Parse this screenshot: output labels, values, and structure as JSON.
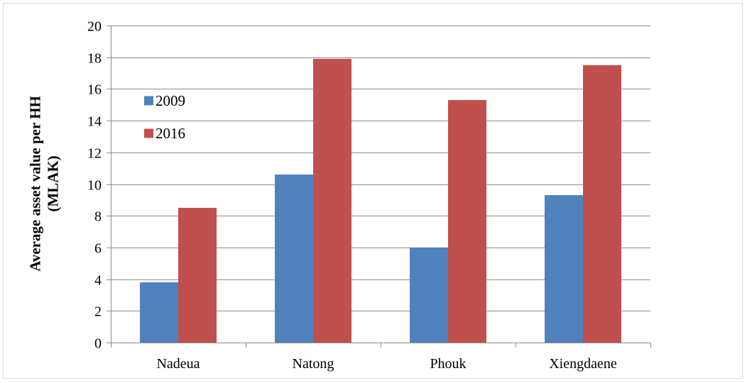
{
  "chart_data": {
    "type": "bar",
    "title": "",
    "xlabel": "",
    "ylabel": "Average asset value per HH (MLAK)",
    "ylabel_lines": [
      "Average asset value per HH",
      "(MLAK)"
    ],
    "categories": [
      "Nadeua",
      "Natong",
      "Phouk",
      "Xiengdaene"
    ],
    "series": [
      {
        "name": "2009",
        "color": "#4f81bd",
        "values": [
          3.8,
          10.6,
          6.0,
          9.3
        ]
      },
      {
        "name": "2016",
        "color": "#c0504d",
        "values": [
          8.5,
          17.9,
          15.3,
          17.5
        ]
      }
    ],
    "ylim": [
      0,
      20
    ],
    "yticks": [
      0,
      2,
      4,
      6,
      8,
      10,
      12,
      14,
      16,
      18,
      20
    ],
    "grid": true,
    "legend_position": "top-left inside plot"
  }
}
